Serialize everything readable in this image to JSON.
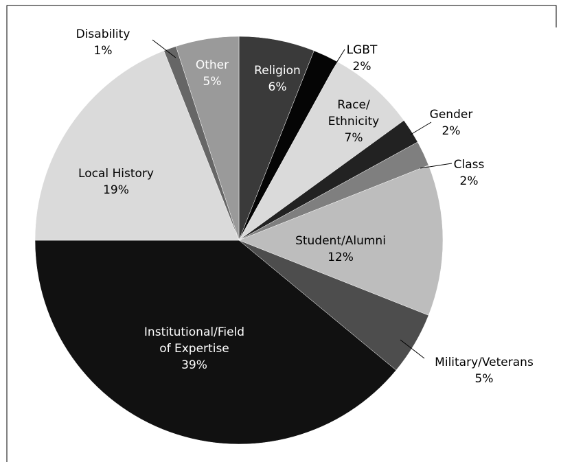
{
  "chart_data": {
    "type": "pie",
    "categories": [
      "Religion",
      "LGBT",
      "Race/\nEthnicity",
      "Gender",
      "Class",
      "Student/Alumni",
      "Military/Veterans",
      "Institutional/Field\nof Expertise",
      "Local History",
      "Disability",
      "Other"
    ],
    "values": [
      6,
      2,
      7,
      2,
      2,
      12,
      5,
      39,
      19,
      1,
      5
    ],
    "value_labels": [
      "6%",
      "2%",
      "7%",
      "2%",
      "2%",
      "12%",
      "5%",
      "39%",
      "19%",
      "1%",
      "5%"
    ],
    "colors": [
      "#3a3a3a",
      "#050505",
      "#dadada",
      "#222222",
      "#7f7f7f",
      "#bdbdbd",
      "#4d4d4d",
      "#111111",
      "#dadada",
      "#666666",
      "#9a9a9a"
    ]
  }
}
